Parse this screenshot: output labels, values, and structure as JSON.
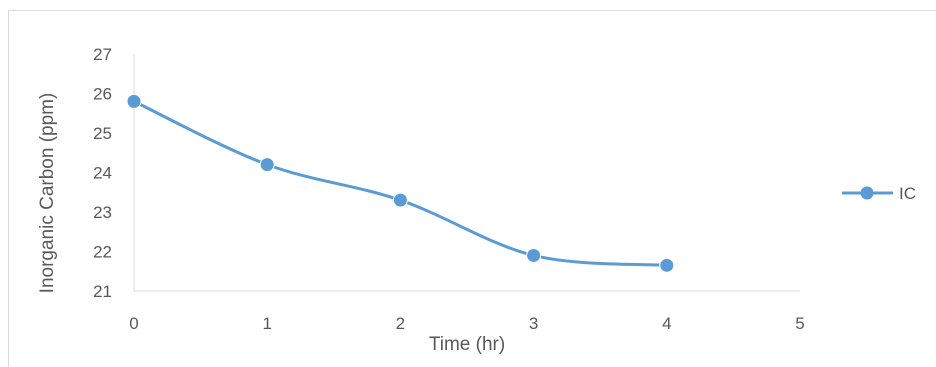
{
  "chart_data": {
    "type": "line",
    "xlabel": "Time (hr)",
    "ylabel": "Inorganic Carbon (ppm)",
    "xlim": [
      0,
      5
    ],
    "ylim": [
      21,
      27
    ],
    "xticks": [
      "0",
      "1",
      "2",
      "3",
      "4",
      "5"
    ],
    "yticks": [
      "21",
      "22",
      "23",
      "24",
      "25",
      "26",
      "27"
    ],
    "grid": false,
    "smooth": true,
    "legend_position": "right",
    "series": [
      {
        "name": "IC",
        "color": "#5b9bd5",
        "x": [
          0,
          1,
          2,
          3,
          4
        ],
        "y": [
          25.8,
          24.2,
          23.3,
          21.9,
          21.65
        ]
      }
    ]
  }
}
